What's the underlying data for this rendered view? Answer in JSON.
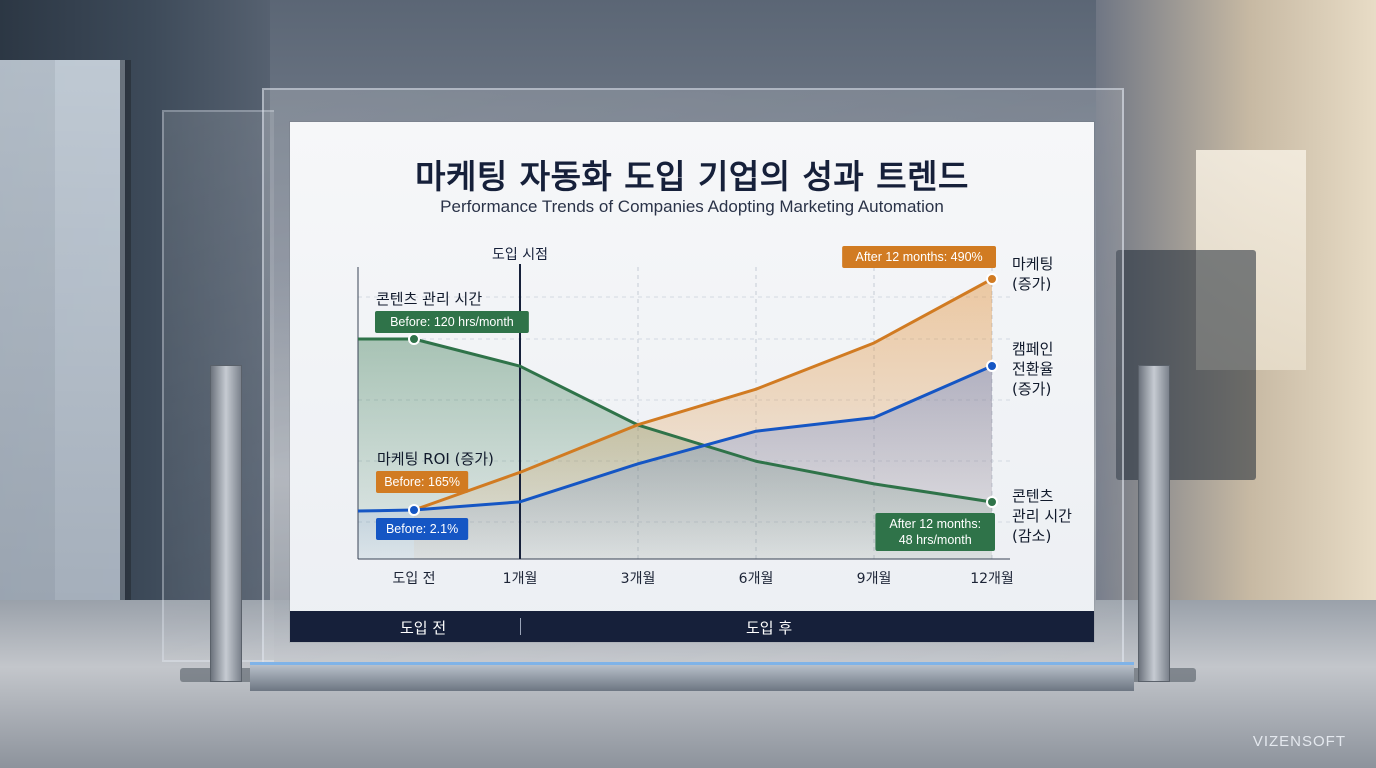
{
  "watermark": "VIZENSOFT",
  "title": "마케팅 자동화 도입 기업의 성과 트렌드",
  "subtitle": "Performance Trends of Companies Adopting Marketing Automation",
  "footer": {
    "before": "도입 전",
    "after": "도입 후"
  },
  "colors": {
    "green": "#2f7349",
    "orange": "#d17b22",
    "blue": "#1556c4",
    "navy": "#16203a"
  },
  "chart_data": {
    "type": "line",
    "categories": [
      "도입 전",
      "1개월",
      "3개월",
      "6개월",
      "9개월",
      "12개월"
    ],
    "adoption_marker": {
      "label": "도입 시점",
      "at": "1개월"
    },
    "grid": true,
    "series": [
      {
        "key": "content",
        "name": "콘텐츠 관리 시간 (감소)",
        "trend": "decrease",
        "color": "#2f7349",
        "values": [
          120,
          108,
          82,
          66,
          56,
          48
        ],
        "start_title": "콘텐츠 관리 시간",
        "start_badge": "Before: 120 hrs/month",
        "end_badge_lines": [
          "After 12 months:",
          "48 hrs/month"
        ],
        "end_label_lines": [
          "콘텐츠",
          "관리 시간",
          "(감소)"
        ]
      },
      {
        "key": "roi",
        "name": "마케팅 ROI (증가)",
        "trend": "increase",
        "color": "#d17b22",
        "values": [
          165,
          218,
          285,
          335,
          400,
          490
        ],
        "start_title": "마케팅 ROI (증가)",
        "start_badge": "Before: 165%",
        "end_badge_lines": [
          "After 12 months: 490%"
        ],
        "end_label_lines": [
          "마케팅",
          "(증가)"
        ]
      },
      {
        "key": "conversion",
        "name": "캠페인 전환율 (증가)",
        "trend": "increase",
        "color": "#1556c4",
        "values": [
          2.1,
          2.4,
          3.8,
          5.0,
          5.5,
          7.4
        ],
        "start_badge": "Before: 2.1%",
        "end_label_lines": [
          "캠페인",
          "전환율",
          "(증가)"
        ]
      }
    ]
  }
}
